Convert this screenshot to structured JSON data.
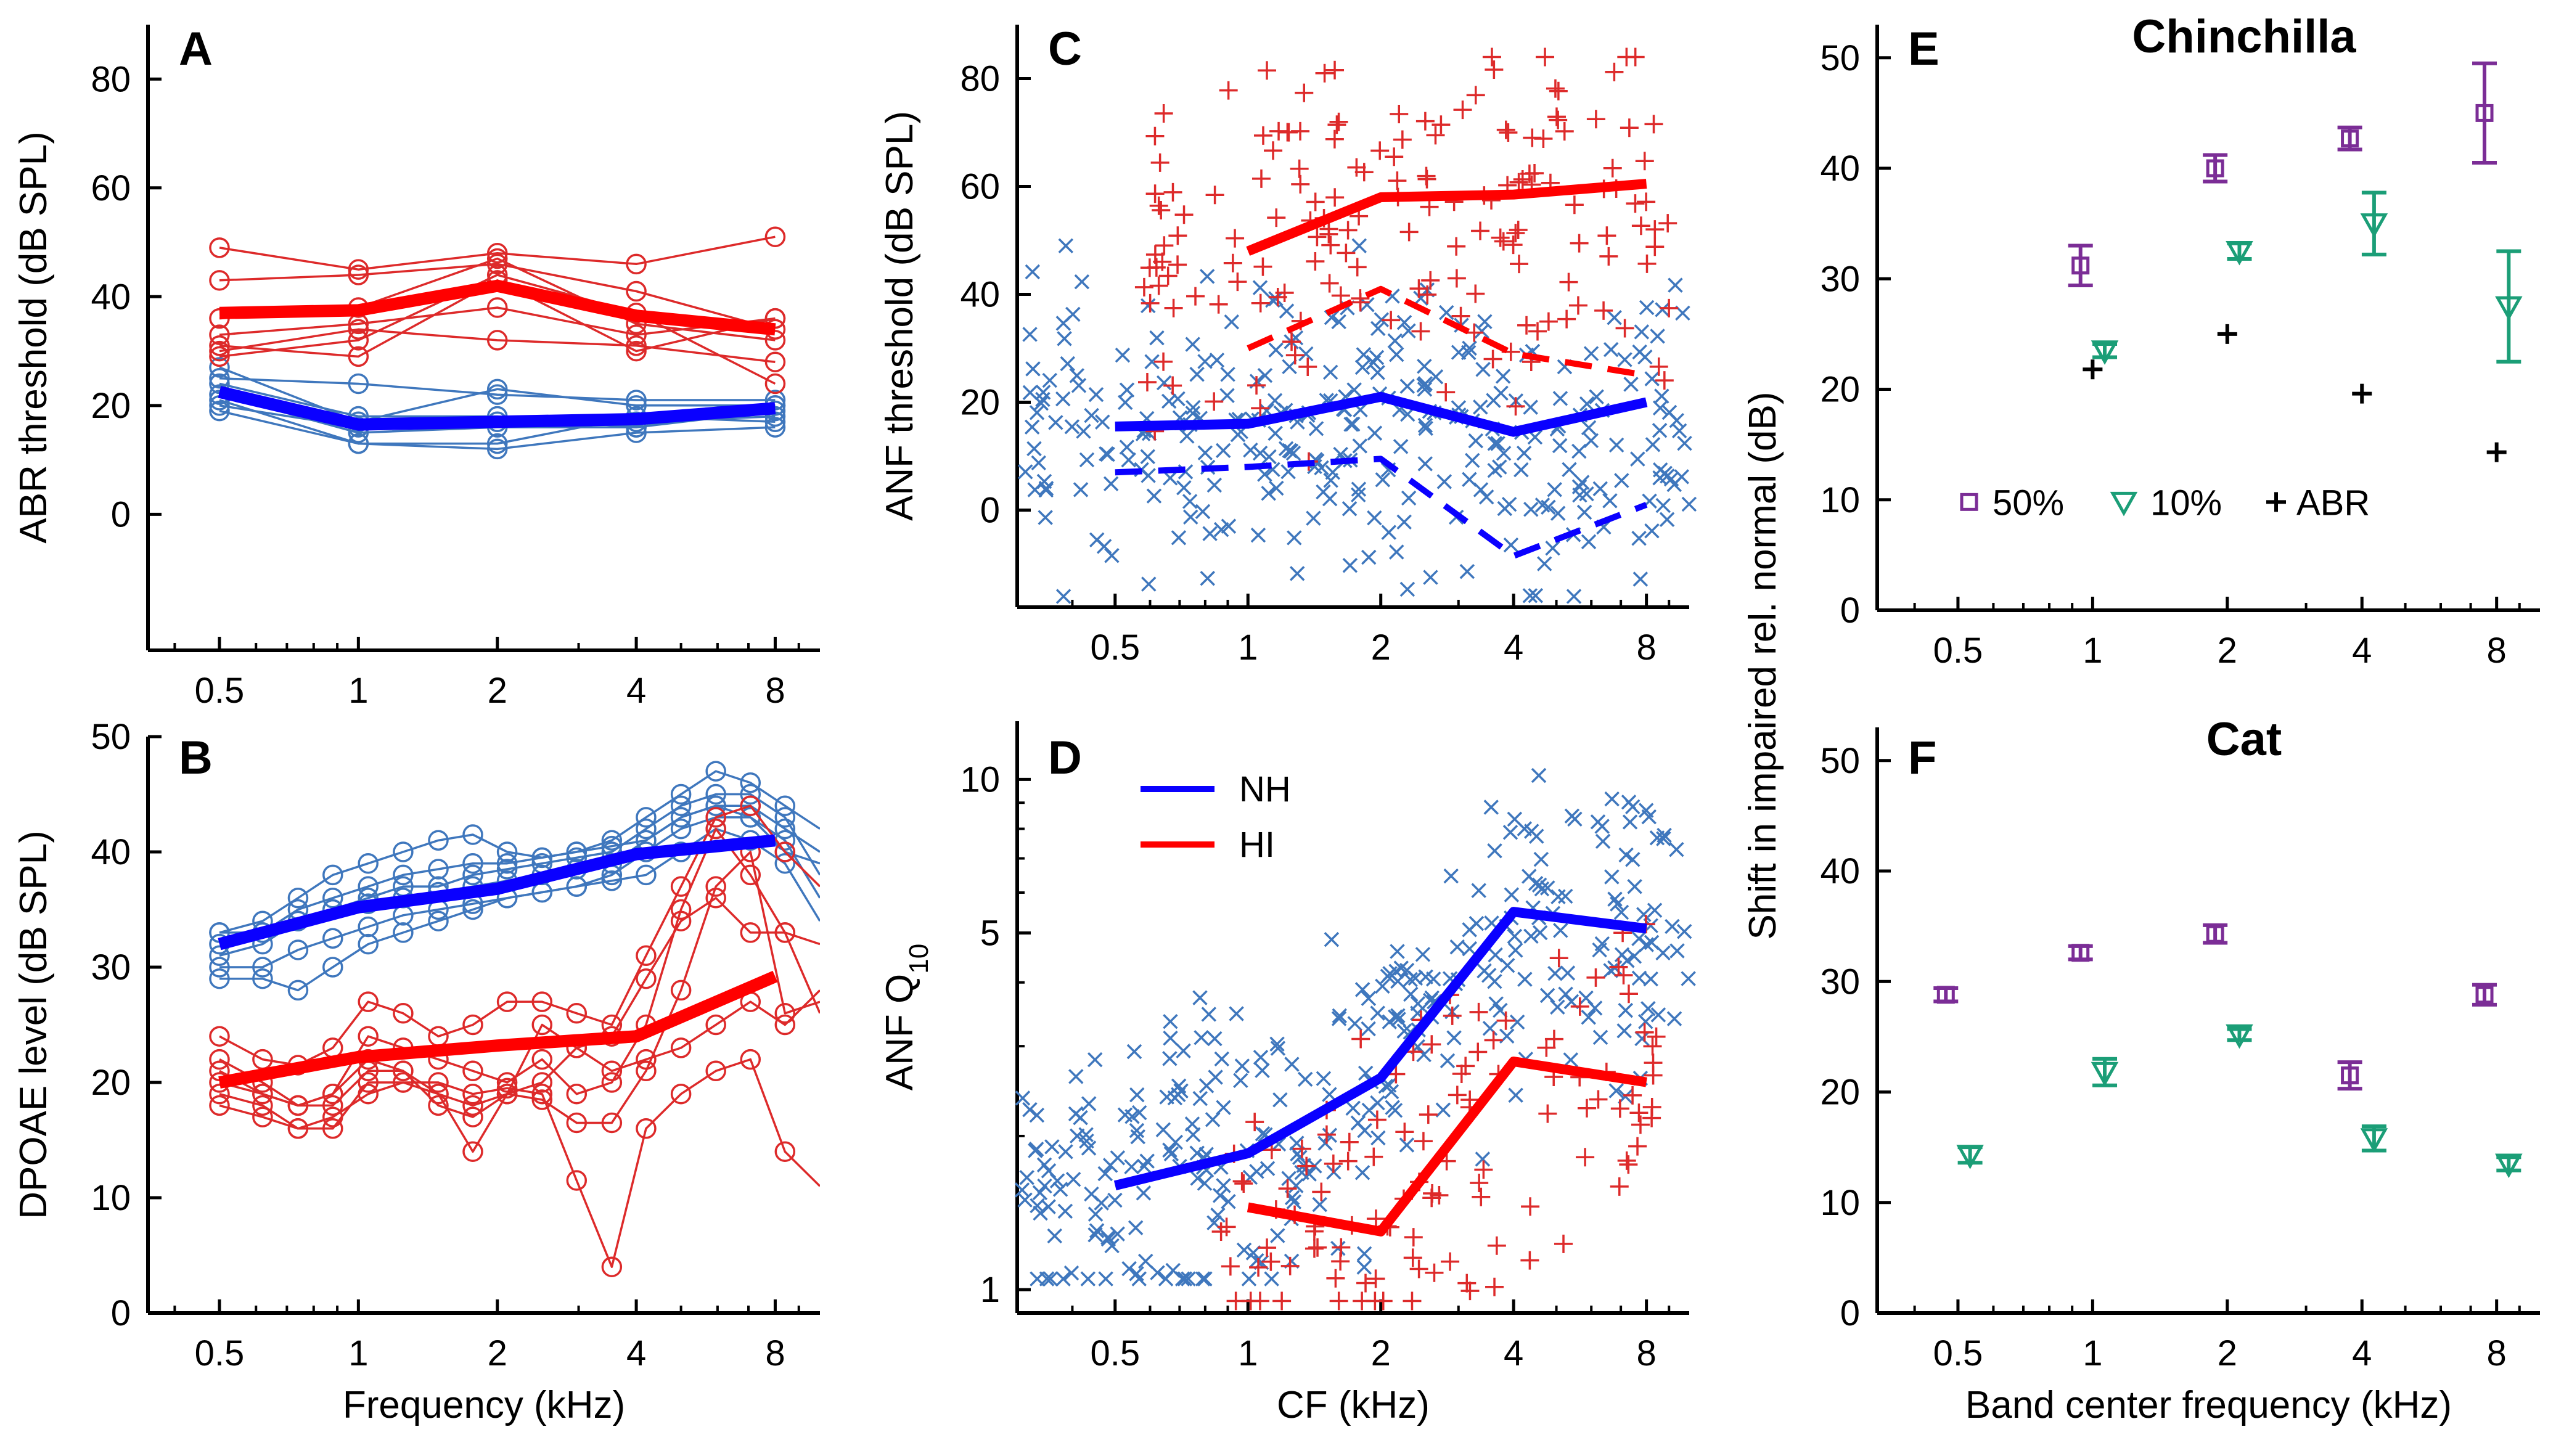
{
  "colors": {
    "nh_mean": "#0a00ff",
    "hi_mean": "#ff0000",
    "nh_indiv": "#3f77bd",
    "hi_indiv": "#dd2a2a",
    "pct50": "#7b2d96",
    "pct10": "#1b9e77",
    "abr": "#000000"
  },
  "chart_data": [
    {
      "panel": "A",
      "type": "line",
      "xscale": "log2",
      "xlabel": "",
      "ylabel": "ABR threshold (dB SPL)",
      "xticks": [
        "0.5",
        "1",
        "2",
        "4",
        "8"
      ],
      "yticks": [
        "0",
        "20",
        "40",
        "60",
        "80"
      ],
      "xlim": [
        0.35,
        10
      ],
      "ylim": [
        -25,
        90
      ],
      "x": [
        0.5,
        1,
        2,
        4,
        8
      ],
      "series": [
        {
          "name": "NH",
          "role": "mean",
          "values": [
            22.5,
            16.5,
            17,
            17.5,
            19.5
          ]
        },
        {
          "name": "HI",
          "role": "mean",
          "values": [
            37,
            37.5,
            42,
            36.5,
            34
          ]
        },
        {
          "role": "nh_indiv",
          "values": [
            [
              20,
              16,
              17,
              17,
              18
            ],
            [
              22,
              15,
              16,
              16,
              19
            ],
            [
              24,
              18,
              18,
              16,
              20
            ],
            [
              19,
              13,
              13,
              18,
              17
            ],
            [
              25,
              24,
              22,
              21,
              21
            ],
            [
              27,
              17,
              23,
              20,
              20
            ],
            [
              21,
              13,
              12,
              15,
              16
            ]
          ]
        },
        {
          "role": "hi_indiv",
          "values": [
            [
              49,
              45,
              48,
              46,
              51
            ],
            [
              43,
              44,
              46,
              41,
              34
            ],
            [
              36,
              38,
              47,
              35,
              32
            ],
            [
              33,
              35,
              38,
              33,
              36
            ],
            [
              30,
              34,
              32,
              31,
              28
            ],
            [
              29,
              32,
              44,
              37,
              24
            ],
            [
              31,
              29,
              43,
              30,
              36
            ]
          ]
        }
      ]
    },
    {
      "panel": "B",
      "type": "line",
      "xscale": "log2",
      "xlabel": "Frequency (kHz)",
      "ylabel": "DPOAE level (dB SPL)",
      "xticks": [
        "0.5",
        "1",
        "2",
        "4",
        "8"
      ],
      "yticks": [
        "0",
        "10",
        "20",
        "30",
        "40",
        "50"
      ],
      "xlim": [
        0.35,
        10
      ],
      "ylim": [
        0,
        50
      ],
      "series": [
        {
          "name": "NH",
          "role": "mean",
          "x": [
            0.5,
            1,
            2,
            4,
            8
          ],
          "values": [
            32,
            35.2,
            36.8,
            39.8,
            41
          ]
        },
        {
          "name": "HI",
          "role": "mean",
          "x": [
            0.5,
            1,
            2,
            4,
            8
          ],
          "values": [
            20,
            22.2,
            23.2,
            24,
            29.2
          ]
        },
        {
          "role": "nh_indiv",
          "x": [
            0.5,
            0.62,
            0.74,
            0.88,
            1.05,
            1.25,
            1.49,
            1.77,
            2.1,
            2.5,
            2.97,
            3.54,
            4.2,
            5,
            5.95,
            7.07,
            8.4,
            10
          ],
          "values": [
            [
              33,
              33,
              35,
              36,
              37,
              38,
              38.5,
              39,
              39,
              39.5,
              40,
              40.5,
              41,
              43,
              44,
              44,
              42,
              40
            ],
            [
              31,
              32,
              34,
              35,
              36,
              37,
              37,
              38,
              38.5,
              39,
              39.5,
              40,
              42,
              44,
              45,
              45,
              43,
              38
            ],
            [
              30,
              30,
              31.5,
              32.5,
              33.5,
              34.5,
              35,
              35.5,
              36,
              36.5,
              37,
              38,
              40,
              42,
              43,
              43,
              41,
              36
            ],
            [
              32,
              33,
              34,
              35,
              35.5,
              36,
              36.5,
              37,
              37.5,
              38,
              38.5,
              39,
              41,
              43,
              44,
              43,
              40,
              39
            ],
            [
              29,
              29,
              28,
              30,
              32,
              33,
              34,
              35,
              36,
              36.5,
              37,
              37.5,
              38,
              40,
              42,
              41,
              39,
              34
            ],
            [
              33,
              34,
              36,
              38,
              39,
              40,
              41,
              41.5,
              40,
              39.5,
              40,
              41,
              43,
              45,
              47,
              46,
              44,
              42
            ]
          ]
        },
        {
          "role": "hi_indiv",
          "x": [
            0.5,
            0.62,
            0.74,
            0.88,
            1.05,
            1.25,
            1.49,
            1.77,
            2.1,
            2.5,
            2.97,
            3.54,
            4.2,
            5,
            5.95,
            7.07,
            8.4,
            10
          ],
          "values": [
            [
              24,
              22,
              21.5,
              23,
              27,
              26,
              24,
              25,
              27,
              27,
              26,
              25,
              31,
              37,
              43,
              44,
              40,
              37
            ],
            [
              21,
              19,
              18,
              19,
              24,
              23,
              22,
              21,
              20,
              22,
              19,
              20,
              25,
              35,
              42,
              38,
              33,
              32
            ],
            [
              18,
              17,
              16,
              17,
              19,
              20,
              19,
              18,
              19,
              18.5,
              16.5,
              16.5,
              21,
              28,
              37,
              40,
              26,
              27
            ],
            [
              20,
              19,
              18,
              18,
              21,
              21,
              18,
              17,
              19,
              20,
              23,
              21,
              22,
              23,
              25,
              27,
              25,
              28
            ],
            [
              19,
              18,
              16,
              16,
              20,
              20,
              20,
              19,
              19.5,
              19,
              11.5,
              4,
              16,
              19,
              21,
              22,
              14,
              11
            ],
            [
              22,
              20,
              18,
              19,
              22,
              21,
              19,
              14,
              19,
              25,
              23,
              24,
              29,
              34,
              36,
              33,
              33,
              26
            ]
          ]
        }
      ]
    },
    {
      "panel": "C",
      "type": "scatter",
      "xscale": "log2",
      "xlabel": "",
      "ylabel": "ANF threshold (dB SPL)",
      "xticks": [
        "0.5",
        "1",
        "2",
        "4",
        "8"
      ],
      "yticks": [
        "0",
        "20",
        "40",
        "60",
        "80"
      ],
      "xlim": [
        0.3,
        10
      ],
      "ylim": [
        -18,
        90
      ],
      "x": [
        0.5,
        1,
        2,
        4,
        8
      ],
      "series": [
        {
          "name": "NH",
          "role": "mean",
          "values": [
            15.5,
            16,
            21,
            14.5,
            20
          ]
        },
        {
          "name": "HI",
          "role": "mean",
          "x": [
            1,
            2,
            4,
            8
          ],
          "values": [
            48,
            58,
            58.5,
            60.5
          ]
        },
        {
          "role": "nh_low",
          "values": [
            7,
            8,
            9.5,
            -8.5,
            1
          ]
        },
        {
          "role": "hi_low",
          "x": [
            1,
            2,
            4,
            8
          ],
          "values": [
            30,
            41,
            29,
            25
          ]
        },
        {
          "role": "nh_scatter",
          "marker": "x",
          "n": 320,
          "x_range": [
            0.3,
            10
          ],
          "y_range": [
            -16,
            49
          ]
        },
        {
          "role": "hi_scatter",
          "marker": "+",
          "n": 170,
          "x_range": [
            0.55,
            9
          ],
          "y_range": [
            9,
            84
          ]
        }
      ]
    },
    {
      "panel": "D",
      "type": "scatter",
      "xscale": "log2",
      "yscale": "log",
      "xlabel": "CF (kHz)",
      "ylabel": "ANF Q10",
      "xticks": [
        "0.5",
        "1",
        "2",
        "4",
        "8"
      ],
      "yticks": [
        "1",
        "5",
        "10"
      ],
      "xlim": [
        0.3,
        10
      ],
      "ylim": [
        0.9,
        13
      ],
      "legend": {
        "placement": "top-left",
        "entries": [
          "NH",
          "HI"
        ]
      },
      "series": [
        {
          "name": "NH",
          "role": "mean",
          "x": [
            0.5,
            1,
            2,
            4,
            8
          ],
          "values": [
            1.6,
            1.85,
            2.6,
            5.5,
            5.1
          ]
        },
        {
          "name": "HI",
          "role": "mean",
          "x": [
            1,
            2,
            4,
            8
          ],
          "values": [
            1.45,
            1.3,
            2.8,
            2.55
          ]
        },
        {
          "role": "nh_scatter",
          "marker": "x",
          "n": 330,
          "x_range": [
            0.3,
            10
          ],
          "y_range": [
            1.05,
            12
          ]
        },
        {
          "role": "hi_scatter",
          "marker": "+",
          "n": 120,
          "x_range": [
            0.85,
            8.5
          ],
          "y_range": [
            0.95,
            11
          ]
        }
      ]
    },
    {
      "panel": "E",
      "type": "scatter",
      "title": "Chinchilla",
      "xscale": "log2",
      "xlabel": "",
      "ylabel": "Shift in impaired rel. normal (dB)",
      "xticks": [
        "0.5",
        "1",
        "2",
        "4",
        "8"
      ],
      "yticks": [
        "0",
        "10",
        "20",
        "30",
        "40",
        "50"
      ],
      "xlim": [
        0.33,
        10
      ],
      "ylim": [
        0,
        53
      ],
      "legend": {
        "placement": "bottom-left",
        "entries": [
          "50%",
          "10%",
          "ABR"
        ]
      },
      "series": [
        {
          "name": "50%",
          "marker": "square",
          "x": [
            1,
            2,
            4,
            8
          ],
          "values": [
            31.2,
            40,
            42.7,
            45
          ],
          "err": [
            1.8,
            1.2,
            1,
            4.5
          ]
        },
        {
          "name": "10%",
          "marker": "triangle-down",
          "x": [
            1,
            2,
            4,
            8
          ],
          "values": [
            23.5,
            32.5,
            35,
            27.5
          ],
          "err": [
            0.6,
            0.7,
            2.8,
            5
          ]
        },
        {
          "name": "ABR",
          "marker": "plus",
          "x": [
            1,
            2,
            4,
            8
          ],
          "values": [
            21.8,
            25,
            19.6,
            14.3
          ]
        }
      ]
    },
    {
      "panel": "F",
      "type": "scatter",
      "title": "Cat",
      "xscale": "log2",
      "xlabel": "Band center frequency (kHz)",
      "ylabel": "",
      "xticks": [
        "0.5",
        "1",
        "2",
        "4",
        "8"
      ],
      "yticks": [
        "0",
        "10",
        "20",
        "30",
        "40",
        "50"
      ],
      "xlim": [
        0.33,
        10
      ],
      "ylim": [
        0,
        53
      ],
      "series": [
        {
          "name": "50%",
          "marker": "square",
          "x": [
            0.5,
            1,
            2,
            4,
            8
          ],
          "values": [
            28.8,
            32.6,
            34.3,
            21.5,
            28.8
          ],
          "err": [
            0.6,
            0.6,
            0.8,
            1.2,
            0.9
          ]
        },
        {
          "name": "10%",
          "marker": "triangle-down",
          "x": [
            0.5,
            1,
            2,
            4,
            8
          ],
          "values": [
            14.3,
            21.8,
            25.2,
            15.8,
            13.5
          ],
          "err": [
            0.7,
            1.2,
            0.5,
            1.1,
            0.6
          ]
        }
      ]
    }
  ]
}
